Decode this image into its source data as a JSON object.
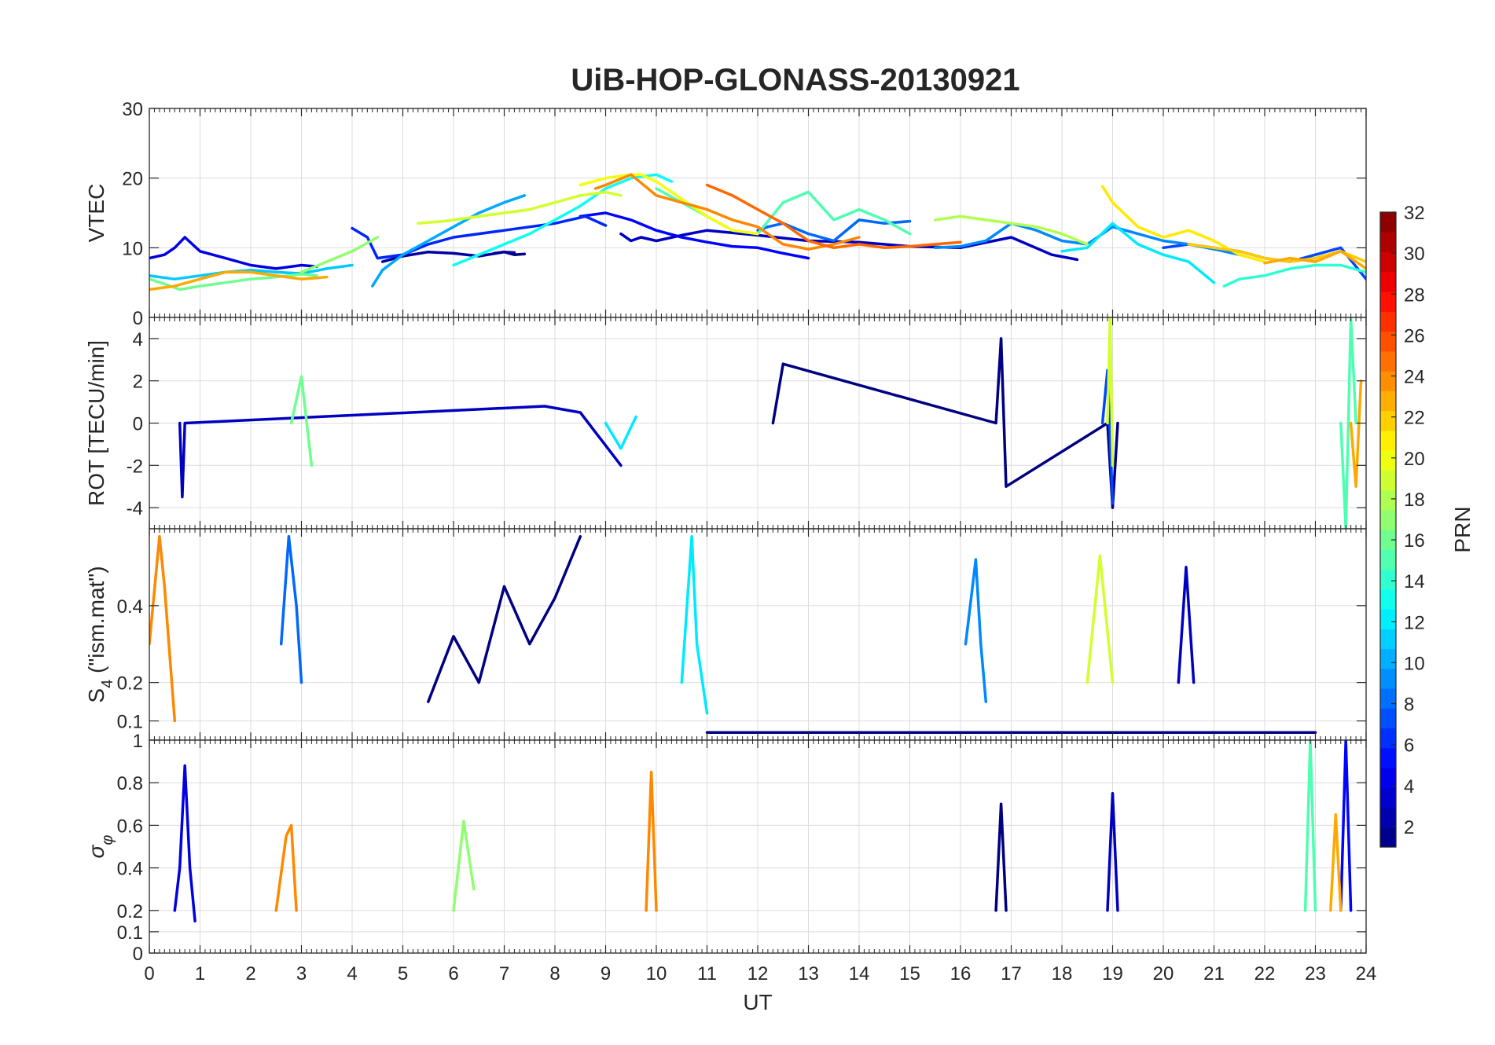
{
  "title": "UiB-HOP-GLONASS-20130921",
  "chart_data": [
    {
      "id": "vtec",
      "type": "line",
      "ylabel": "VTEC",
      "ylabel_sub": "",
      "ylim": [
        0,
        30
      ],
      "yticks": [
        0,
        10,
        20,
        30
      ],
      "xlim": [
        0,
        24
      ],
      "grid": true,
      "series": [
        {
          "prn": 1,
          "x": [
            6.8,
            7.0,
            7.2,
            7.4
          ],
          "y": [
            9.2,
            9.4,
            9.0,
            9.1
          ]
        },
        {
          "prn": 2,
          "x": [
            4.6,
            5.0,
            5.5,
            6.0,
            6.5,
            7.0,
            7.2
          ],
          "y": [
            8.0,
            8.8,
            9.4,
            9.2,
            8.8,
            9.4,
            9.3
          ]
        },
        {
          "prn": 3,
          "x": [
            9.3,
            9.5,
            9.7,
            10.0,
            10.5,
            11.0,
            12.0,
            13.0,
            14.0,
            15.0,
            16.0,
            17.0,
            17.8,
            18.3
          ],
          "y": [
            12.0,
            11.0,
            11.5,
            11.0,
            11.8,
            12.5,
            11.8,
            11.0,
            10.8,
            10.2,
            10.0,
            11.5,
            9.0,
            8.3
          ]
        },
        {
          "prn": 4,
          "x": [
            0.0,
            0.3,
            0.5,
            0.7,
            1.0,
            1.5,
            2.0,
            2.5,
            3.0,
            3.3
          ],
          "y": [
            8.5,
            9.0,
            10.0,
            11.5,
            9.5,
            8.5,
            7.5,
            7.0,
            7.5,
            7.3
          ]
        },
        {
          "prn": 5,
          "x": [
            8.5,
            9.0,
            9.5,
            10.0,
            10.5,
            11.0,
            11.5,
            12.0,
            12.5,
            13.0
          ],
          "y": [
            14.5,
            15.0,
            14.0,
            12.5,
            11.5,
            10.8,
            10.2,
            10.0,
            9.2,
            8.5
          ]
        },
        {
          "prn": 6,
          "x": [
            4.0,
            4.3,
            4.5,
            5.0,
            5.5,
            6.0,
            7.0,
            8.0,
            8.6,
            9.0
          ],
          "y": [
            12.8,
            11.5,
            8.5,
            9.0,
            10.5,
            11.5,
            12.5,
            13.5,
            14.5,
            13.2
          ]
        },
        {
          "prn": 7,
          "x": [
            20.0,
            20.5,
            21.0,
            21.5,
            22.0,
            22.5,
            23.0,
            23.5,
            24.0
          ],
          "y": [
            10.0,
            10.5,
            10.0,
            9.5,
            8.5,
            8.0,
            9.0,
            10.0,
            5.5
          ]
        },
        {
          "prn": 8,
          "x": [
            12.0,
            12.2,
            12.5,
            13.0,
            13.5,
            14.0,
            14.5,
            15.0
          ],
          "y": [
            12.5,
            13.0,
            13.5,
            12.0,
            11.0,
            14.0,
            13.5,
            13.8
          ]
        },
        {
          "prn": 9,
          "x": [
            15.5,
            16.0,
            16.5,
            17.0,
            17.5,
            18.0,
            18.5,
            19.0,
            19.5,
            20.0,
            20.5,
            21.0,
            21.5
          ],
          "y": [
            10.0,
            10.2,
            11.0,
            13.5,
            12.5,
            11.0,
            10.5,
            13.0,
            12.0,
            11.0,
            10.5,
            9.8,
            9.0
          ]
        },
        {
          "prn": 10,
          "x": [
            4.4,
            4.6,
            5.0,
            5.5,
            6.0,
            6.5,
            7.0,
            7.4
          ],
          "y": [
            4.5,
            6.8,
            9.0,
            11.0,
            13.0,
            15.0,
            16.5,
            17.5
          ]
        },
        {
          "prn": 11,
          "x": [
            0.0,
            0.5,
            1.0,
            1.5,
            2.0,
            2.5,
            3.0,
            3.5,
            4.0
          ],
          "y": [
            6.0,
            5.5,
            6.0,
            6.5,
            6.8,
            6.5,
            6.3,
            7.0,
            7.5
          ]
        },
        {
          "prn": 12,
          "x": [
            18.0,
            18.5,
            19.0,
            19.5,
            20.0,
            20.5,
            21.0
          ],
          "y": [
            9.5,
            10.0,
            13.5,
            10.5,
            9.0,
            8.0,
            5.0
          ]
        },
        {
          "prn": 13,
          "x": [
            6.0,
            6.5,
            7.0,
            7.5,
            8.0,
            8.5,
            9.0,
            9.5,
            10.0,
            10.3
          ],
          "y": [
            7.5,
            9.0,
            10.5,
            12.0,
            14.0,
            16.0,
            18.5,
            20.0,
            20.5,
            19.5
          ]
        },
        {
          "prn": 14,
          "x": [
            21.2,
            21.5,
            22.0,
            22.5,
            23.0,
            23.5,
            24.0
          ],
          "y": [
            4.5,
            5.5,
            6.0,
            7.0,
            7.5,
            7.5,
            6.5
          ]
        },
        {
          "prn": 15,
          "x": [
            10.0,
            10.5,
            11.0,
            11.5,
            12.0,
            12.5,
            13.0,
            13.5,
            14.0,
            14.5,
            15.0
          ],
          "y": [
            18.5,
            16.5,
            14.5,
            12.5,
            12.0,
            16.5,
            18.0,
            14.0,
            15.5,
            14.0,
            12.0
          ]
        },
        {
          "prn": 16,
          "x": [
            0.0,
            0.3,
            0.6,
            1.0,
            1.5,
            2.0,
            2.5,
            3.0,
            3.3
          ],
          "y": [
            5.5,
            4.8,
            4.0,
            4.5,
            5.0,
            5.5,
            5.8,
            6.2,
            6.0
          ]
        },
        {
          "prn": 17,
          "x": [
            3.0,
            3.5,
            4.0,
            4.5
          ],
          "y": [
            6.5,
            8.0,
            9.5,
            11.5
          ]
        },
        {
          "prn": 18,
          "x": [
            15.5,
            16.0,
            16.5,
            17.0,
            17.5,
            18.0,
            18.5
          ],
          "y": [
            14.0,
            14.5,
            14.0,
            13.5,
            13.0,
            12.0,
            10.5
          ]
        },
        {
          "prn": 19,
          "x": [
            5.3,
            5.8,
            6.5,
            7.0,
            7.5,
            8.0,
            8.5,
            9.0,
            9.3
          ],
          "y": [
            13.5,
            13.8,
            14.5,
            15.0,
            15.5,
            16.5,
            17.5,
            18.0,
            17.5
          ]
        },
        {
          "prn": 20,
          "x": [
            8.5,
            9.0,
            9.5,
            9.7,
            10.0,
            10.5,
            11.0,
            11.5,
            12.0
          ],
          "y": [
            19.0,
            20.0,
            20.5,
            20.5,
            19.5,
            17.0,
            14.5,
            12.5,
            12.0
          ]
        },
        {
          "prn": 21,
          "x": [
            18.8,
            19.0,
            19.5,
            20.0,
            20.5,
            21.0,
            21.5,
            22.0
          ],
          "y": [
            18.8,
            16.5,
            13.0,
            11.5,
            12.5,
            11.0,
            9.0,
            8.0
          ]
        },
        {
          "prn": 22,
          "x": [
            20.5,
            21.0,
            21.5,
            22.0,
            22.5,
            23.0,
            23.5,
            24.0
          ],
          "y": [
            10.5,
            10.0,
            9.5,
            8.5,
            8.0,
            8.5,
            9.5,
            8.0
          ]
        },
        {
          "prn": 23,
          "x": [
            0.0,
            0.5,
            1.0,
            1.5,
            2.0,
            2.5,
            3.0,
            3.5
          ],
          "y": [
            4.0,
            4.5,
            5.5,
            6.5,
            6.5,
            6.0,
            5.5,
            5.8
          ]
        },
        {
          "prn": 24,
          "x": [
            8.8,
            9.0,
            9.5,
            10.0,
            10.5,
            11.0,
            11.5,
            12.0,
            12.5,
            13.0,
            13.5,
            14.0
          ],
          "y": [
            18.5,
            19.0,
            20.5,
            17.5,
            16.5,
            15.5,
            14.0,
            13.0,
            10.5,
            9.8,
            10.5,
            11.5
          ]
        },
        {
          "prn": 25,
          "x": [
            11.0,
            11.5,
            12.0,
            12.5,
            13.0,
            13.5,
            14.0,
            14.5,
            15.0,
            15.5,
            16.0
          ],
          "y": [
            19.0,
            17.5,
            15.5,
            13.5,
            11.0,
            10.0,
            10.5,
            10.0,
            10.2,
            10.5,
            10.8
          ]
        },
        {
          "prn": 23,
          "x": [
            22.0,
            22.5,
            23.0,
            23.5,
            24.0
          ],
          "y": [
            7.8,
            8.5,
            8.0,
            9.5,
            7.0
          ]
        }
      ]
    },
    {
      "id": "rot",
      "type": "line",
      "ylabel": "ROT [TECU/min]",
      "ylabel_sub": "",
      "ylim": [
        -5,
        5
      ],
      "yticks": [
        -4,
        -2,
        0,
        2,
        4
      ],
      "xlim": [
        0,
        24
      ],
      "grid": true,
      "series": [
        {
          "prn": 1,
          "x": [
            12.3,
            12.5,
            16.7,
            16.8,
            16.9,
            18.9,
            19.0,
            19.1
          ],
          "y": [
            0.0,
            2.8,
            0.0,
            4.0,
            -3.0,
            0.0,
            -4.0,
            0.0
          ]
        },
        {
          "prn": 3,
          "x": [
            0.6,
            0.65,
            0.7,
            7.8,
            8.5,
            9.3
          ],
          "y": [
            0.0,
            -3.5,
            0.0,
            0.8,
            0.5,
            -2.0
          ]
        },
        {
          "prn": 7,
          "x": [
            18.8,
            18.9,
            19.0
          ],
          "y": [
            0.0,
            2.5,
            -3.8
          ]
        },
        {
          "prn": 12,
          "x": [
            9.0,
            9.3,
            9.6
          ],
          "y": [
            0.0,
            -1.2,
            0.3
          ]
        },
        {
          "prn": 15,
          "x": [
            23.5,
            23.6,
            23.7,
            23.8
          ],
          "y": [
            0.0,
            -5.0,
            5.0,
            0.0
          ]
        },
        {
          "prn": 16,
          "x": [
            2.8,
            3.0,
            3.2
          ],
          "y": [
            0.0,
            2.2,
            -2.0
          ]
        },
        {
          "prn": 19,
          "x": [
            18.9,
            18.95,
            19.0
          ],
          "y": [
            0.0,
            5.0,
            -2.0
          ]
        },
        {
          "prn": 23,
          "x": [
            23.7,
            23.8,
            23.9
          ],
          "y": [
            0.0,
            -3.0,
            2.0
          ]
        }
      ]
    },
    {
      "id": "s4",
      "type": "line",
      "ylabel": "S",
      "ylabel_sub": "4",
      "ylabel_after": " (\"ism.mat\")",
      "ylim": [
        0.05,
        0.6
      ],
      "yticks": [
        0.1,
        0.2,
        0.4
      ],
      "xlim": [
        0,
        24
      ],
      "grid": true,
      "series": [
        {
          "prn": 1,
          "x": [
            5.5,
            6.0,
            6.5,
            7.0,
            7.5,
            8.0,
            8.5
          ],
          "y": [
            0.15,
            0.32,
            0.2,
            0.45,
            0.3,
            0.42,
            0.58
          ]
        },
        {
          "prn": 1,
          "x": [
            11.0,
            13.0,
            15.0,
            17.0,
            19.0,
            21.0,
            23.0
          ],
          "y": [
            0.07,
            0.07,
            0.07,
            0.07,
            0.07,
            0.07,
            0.07
          ]
        },
        {
          "prn": 8,
          "x": [
            2.6,
            2.75,
            2.9,
            3.0
          ],
          "y": [
            0.3,
            0.58,
            0.4,
            0.2
          ]
        },
        {
          "prn": 9,
          "x": [
            16.1,
            16.3,
            16.4,
            16.5
          ],
          "y": [
            0.3,
            0.52,
            0.3,
            0.15
          ]
        },
        {
          "prn": 3,
          "x": [
            20.3,
            20.45,
            20.6
          ],
          "y": [
            0.2,
            0.5,
            0.2
          ]
        },
        {
          "prn": 24,
          "x": [
            0.0,
            0.2,
            0.3,
            0.5
          ],
          "y": [
            0.3,
            0.58,
            0.45,
            0.1
          ]
        },
        {
          "prn": 12,
          "x": [
            10.5,
            10.7,
            10.8,
            11.0
          ],
          "y": [
            0.2,
            0.58,
            0.3,
            0.12
          ]
        },
        {
          "prn": 19,
          "x": [
            18.5,
            18.75,
            19.0
          ],
          "y": [
            0.2,
            0.53,
            0.2
          ]
        }
      ]
    },
    {
      "id": "sigma_phi",
      "type": "line",
      "ylabel": "σ",
      "ylabel_sub": "φ",
      "ylim": [
        0,
        1
      ],
      "yticks": [
        0,
        0.1,
        0.2,
        0.4,
        0.6,
        0.8,
        1
      ],
      "xlim": [
        0,
        24
      ],
      "xticks": [
        0,
        1,
        2,
        3,
        4,
        5,
        6,
        7,
        8,
        9,
        10,
        11,
        12,
        13,
        14,
        15,
        16,
        17,
        18,
        19,
        20,
        21,
        22,
        23,
        24
      ],
      "xlabel": "UT",
      "grid": true,
      "series": [
        {
          "prn": 4,
          "x": [
            0.5,
            0.6,
            0.7,
            0.8,
            0.9
          ],
          "y": [
            0.2,
            0.4,
            0.88,
            0.4,
            0.15
          ]
        },
        {
          "prn": 24,
          "x": [
            2.5,
            2.7,
            2.8,
            2.9
          ],
          "y": [
            0.2,
            0.55,
            0.6,
            0.2
          ]
        },
        {
          "prn": 24,
          "x": [
            9.8,
            9.9,
            10.0
          ],
          "y": [
            0.2,
            0.85,
            0.2
          ]
        },
        {
          "prn": 1,
          "x": [
            16.7,
            16.8,
            16.9
          ],
          "y": [
            0.2,
            0.7,
            0.2
          ]
        },
        {
          "prn": 3,
          "x": [
            18.9,
            19.0,
            19.1
          ],
          "y": [
            0.2,
            0.75,
            0.2
          ]
        },
        {
          "prn": 15,
          "x": [
            22.8,
            22.9,
            23.0
          ],
          "y": [
            0.2,
            1.0,
            0.2
          ]
        },
        {
          "prn": 5,
          "x": [
            23.5,
            23.6,
            23.7
          ],
          "y": [
            0.2,
            1.0,
            0.2
          ]
        },
        {
          "prn": 17,
          "x": [
            6.0,
            6.2,
            6.4
          ],
          "y": [
            0.2,
            0.62,
            0.3
          ]
        },
        {
          "prn": 23,
          "x": [
            23.3,
            23.4,
            23.5
          ],
          "y": [
            0.2,
            0.65,
            0.2
          ]
        }
      ]
    }
  ],
  "colorbar": {
    "label": "PRN",
    "min": 1,
    "max": 32,
    "ticks": [
      2,
      4,
      6,
      8,
      10,
      12,
      14,
      16,
      18,
      20,
      22,
      24,
      26,
      28,
      30,
      32
    ],
    "colormap": "jet"
  }
}
